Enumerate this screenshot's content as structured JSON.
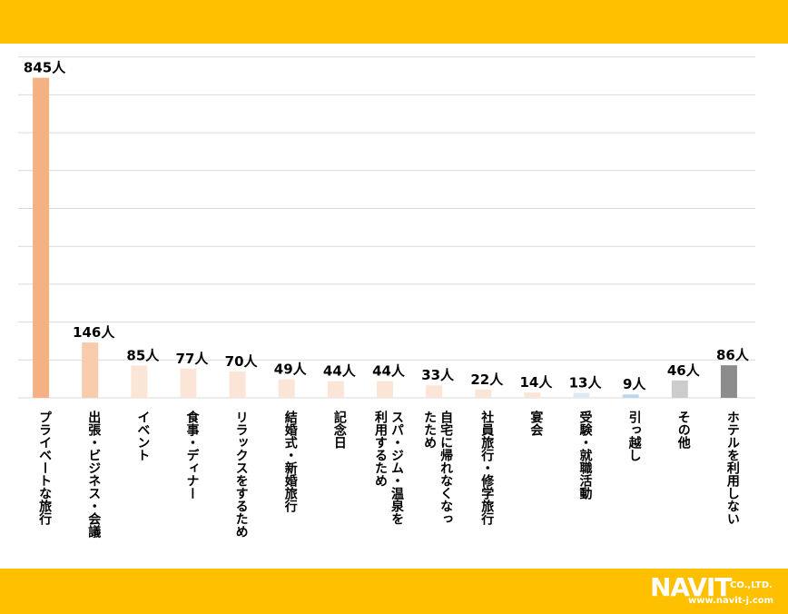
{
  "chart_data": {
    "type": "bar",
    "categories": [
      "プライベートな旅行",
      "出張・ビジネス・会議",
      "イベント",
      "食事・ディナー",
      "リラックスをするため",
      "結婚式・新婚旅行",
      "記念日",
      "スパ・ジム・温泉を\n利用するため",
      "自宅に帰れなくなっ\nたため",
      "社員旅行・修学旅行",
      "宴会",
      "受験・就職活動",
      "引っ越し",
      "その他",
      "ホテルを利用しない"
    ],
    "values": [
      845,
      146,
      85,
      77,
      70,
      49,
      44,
      44,
      33,
      22,
      14,
      13,
      9,
      46,
      86
    ],
    "value_labels": [
      "845人",
      "146人",
      "85人",
      "77人",
      "70人",
      "49人",
      "44人",
      "44人",
      "33人",
      "22人",
      "14人",
      "13人",
      "9人",
      "46人",
      "86人"
    ],
    "colors": [
      "#f4b183",
      "#f8cbad",
      "#fbe5d6",
      "#fbe5d6",
      "#fbe5d6",
      "#fbe5d6",
      "#fbe5d6",
      "#fbe5d6",
      "#fbe5d6",
      "#fbe5d6",
      "#fbe5d6",
      "#deebf7",
      "#bdd7ee",
      "#cccccc",
      "#8c8c8c"
    ],
    "ylim": [
      0,
      900
    ],
    "gridlines": [
      0,
      100,
      200,
      300,
      400,
      500,
      600,
      700,
      800,
      900
    ],
    "grid": true,
    "legend": "none"
  },
  "brand": {
    "logo_main": "NAVIT",
    "logo_suffix": "CO.,LTD.",
    "logo_url": "www.navit-j.com",
    "band_color": "#ffc000"
  }
}
